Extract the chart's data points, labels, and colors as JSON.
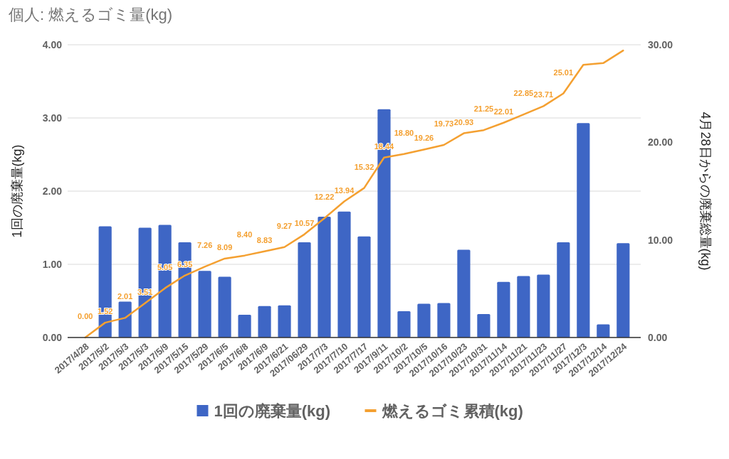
{
  "chart_data": {
    "type": "bar",
    "title": "個人: 燃えるゴミ量(kg)",
    "ylabel": "1回の廃棄量(kg)",
    "y2label": "4月28日からの廃棄総量(kg)",
    "categories": [
      "2017/4/28",
      "2017/5/2",
      "2017/5/3",
      "2017/5/3",
      "2017/5/9",
      "2017/5/15",
      "2017/5/29",
      "2017/6/5",
      "2017/6/8",
      "2017/6/9",
      "2017/6/21",
      "2017/06/29",
      "2017/7/3",
      "2017/7/10",
      "2017/7/17",
      "2017/9/11",
      "2017/10/2",
      "2017/10/5",
      "2017/10/16",
      "2017/10/23",
      "2017/10/31",
      "2017/11/14",
      "2017/11/21",
      "2017/11/23",
      "2017/11/27",
      "2017/12/3",
      "2017/12/14",
      "2017/12/24"
    ],
    "series": [
      {
        "name": "1回の廃棄量(kg)",
        "type": "bar",
        "color": "#3e66c5",
        "values": [
          0,
          1.52,
          0.49,
          1.5,
          1.54,
          1.3,
          0.91,
          0.83,
          0.31,
          0.43,
          0.44,
          1.3,
          1.65,
          1.72,
          1.38,
          3.12,
          0.36,
          0.46,
          0.47,
          1.2,
          0.32,
          0.76,
          0.84,
          0.86,
          1.3,
          2.93,
          0.18,
          1.29
        ]
      },
      {
        "name": "燃えるゴミ累積(kg)",
        "type": "line",
        "axis": "y2",
        "color": "#f4a031",
        "values": [
          0,
          1.52,
          2.01,
          3.51,
          5.05,
          6.35,
          7.26,
          8.09,
          8.4,
          8.83,
          9.27,
          10.57,
          12.22,
          13.94,
          15.32,
          18.44,
          18.8,
          19.26,
          19.73,
          20.93,
          21.25,
          22.01,
          22.85,
          23.71,
          25.01,
          27.94,
          28.12,
          29.41
        ],
        "value_labels": [
          "0.00",
          "1.52",
          "2.01",
          "3.51",
          "5.05",
          "6.35",
          "7.26",
          "8.09",
          "8.40",
          "8.83",
          "9.27",
          "10.57",
          "12.22",
          "13.94",
          "15.32",
          "18.44",
          "18.80",
          "19.26",
          "19.73",
          "20.93",
          "21.25",
          "22.01",
          "22.85",
          "23.71",
          "25.01",
          null,
          null,
          null
        ]
      }
    ],
    "ylim": [
      0,
      4
    ],
    "yticks": [
      {
        "value": 0,
        "label": "0.00"
      },
      {
        "value": 1,
        "label": "1.00"
      },
      {
        "value": 2,
        "label": "2.00"
      },
      {
        "value": 3,
        "label": "3.00"
      },
      {
        "value": 4,
        "label": "4.00"
      }
    ],
    "y2lim": [
      0,
      30
    ],
    "y2ticks": [
      {
        "value": 0,
        "label": "0.00"
      },
      {
        "value": 10,
        "label": "10.00"
      },
      {
        "value": 20,
        "label": "20.00"
      },
      {
        "value": 30,
        "label": "30.00"
      }
    ],
    "grid": "y",
    "legend": "bottom"
  }
}
